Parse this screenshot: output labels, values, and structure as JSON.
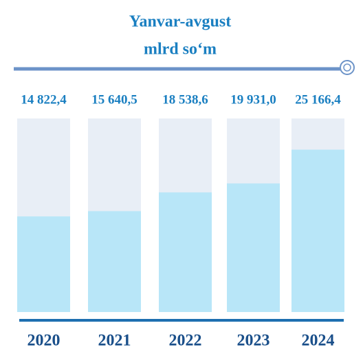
{
  "chart_data": {
    "type": "bar",
    "title": "Yanvar-avgust",
    "subtitle": "mlrd so‘m",
    "categories": [
      "2020",
      "2021",
      "2022",
      "2023",
      "2024"
    ],
    "values": [
      14822.4,
      15640.5,
      18538.6,
      19931.0,
      25166.4
    ],
    "value_labels": [
      "14 822,4",
      "15 640,5",
      "18 538,6",
      "19 931,0",
      "25 166,4"
    ],
    "color": "#b8e6f8",
    "track_color": "#e8eef6",
    "ylim": [
      0,
      30000
    ]
  }
}
